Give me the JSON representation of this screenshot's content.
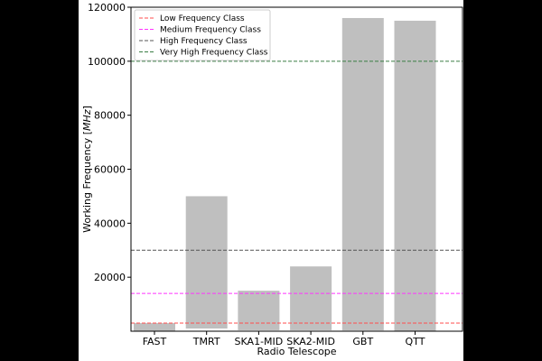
{
  "chart_data": {
    "type": "bar",
    "xlabel": "Radio Telescope",
    "ylabel": "Working Frequency [",
    "ylabel_unit": "MHz",
    "ylabel_end": "]",
    "categories": [
      "FAST",
      "TMRT",
      "SKA1-MID",
      "SKA2-MID",
      "GBT",
      "QTT"
    ],
    "bars": [
      {
        "bottom": 70,
        "top": 3000
      },
      {
        "bottom": 1000,
        "top": 50000
      },
      {
        "bottom": 350,
        "top": 15000
      },
      {
        "bottom": 350,
        "top": 24000
      },
      {
        "bottom": 290,
        "top": 116000
      },
      {
        "bottom": 150,
        "top": 115000
      }
    ],
    "ylim": [
      0,
      120000
    ],
    "yticks": [
      20000,
      40000,
      60000,
      80000,
      100000,
      120000
    ],
    "ytick_labels": [
      "20000",
      "40000",
      "60000",
      "80000",
      "100000",
      "120000"
    ],
    "bar_color": "#bfbfbf",
    "reference_lines": [
      {
        "name": "Low Frequency Class",
        "value": 3000,
        "color": "#ff4d4d"
      },
      {
        "name": "Medium Frequency Class",
        "value": 14000,
        "color": "#ff33ff"
      },
      {
        "name": "High Frequency Class",
        "value": 30000,
        "color": "#555555"
      },
      {
        "name": "Very High Frequency Class",
        "value": 100000,
        "color": "#3a7d44"
      }
    ],
    "legend_position": "top-left",
    "grid": false
  }
}
